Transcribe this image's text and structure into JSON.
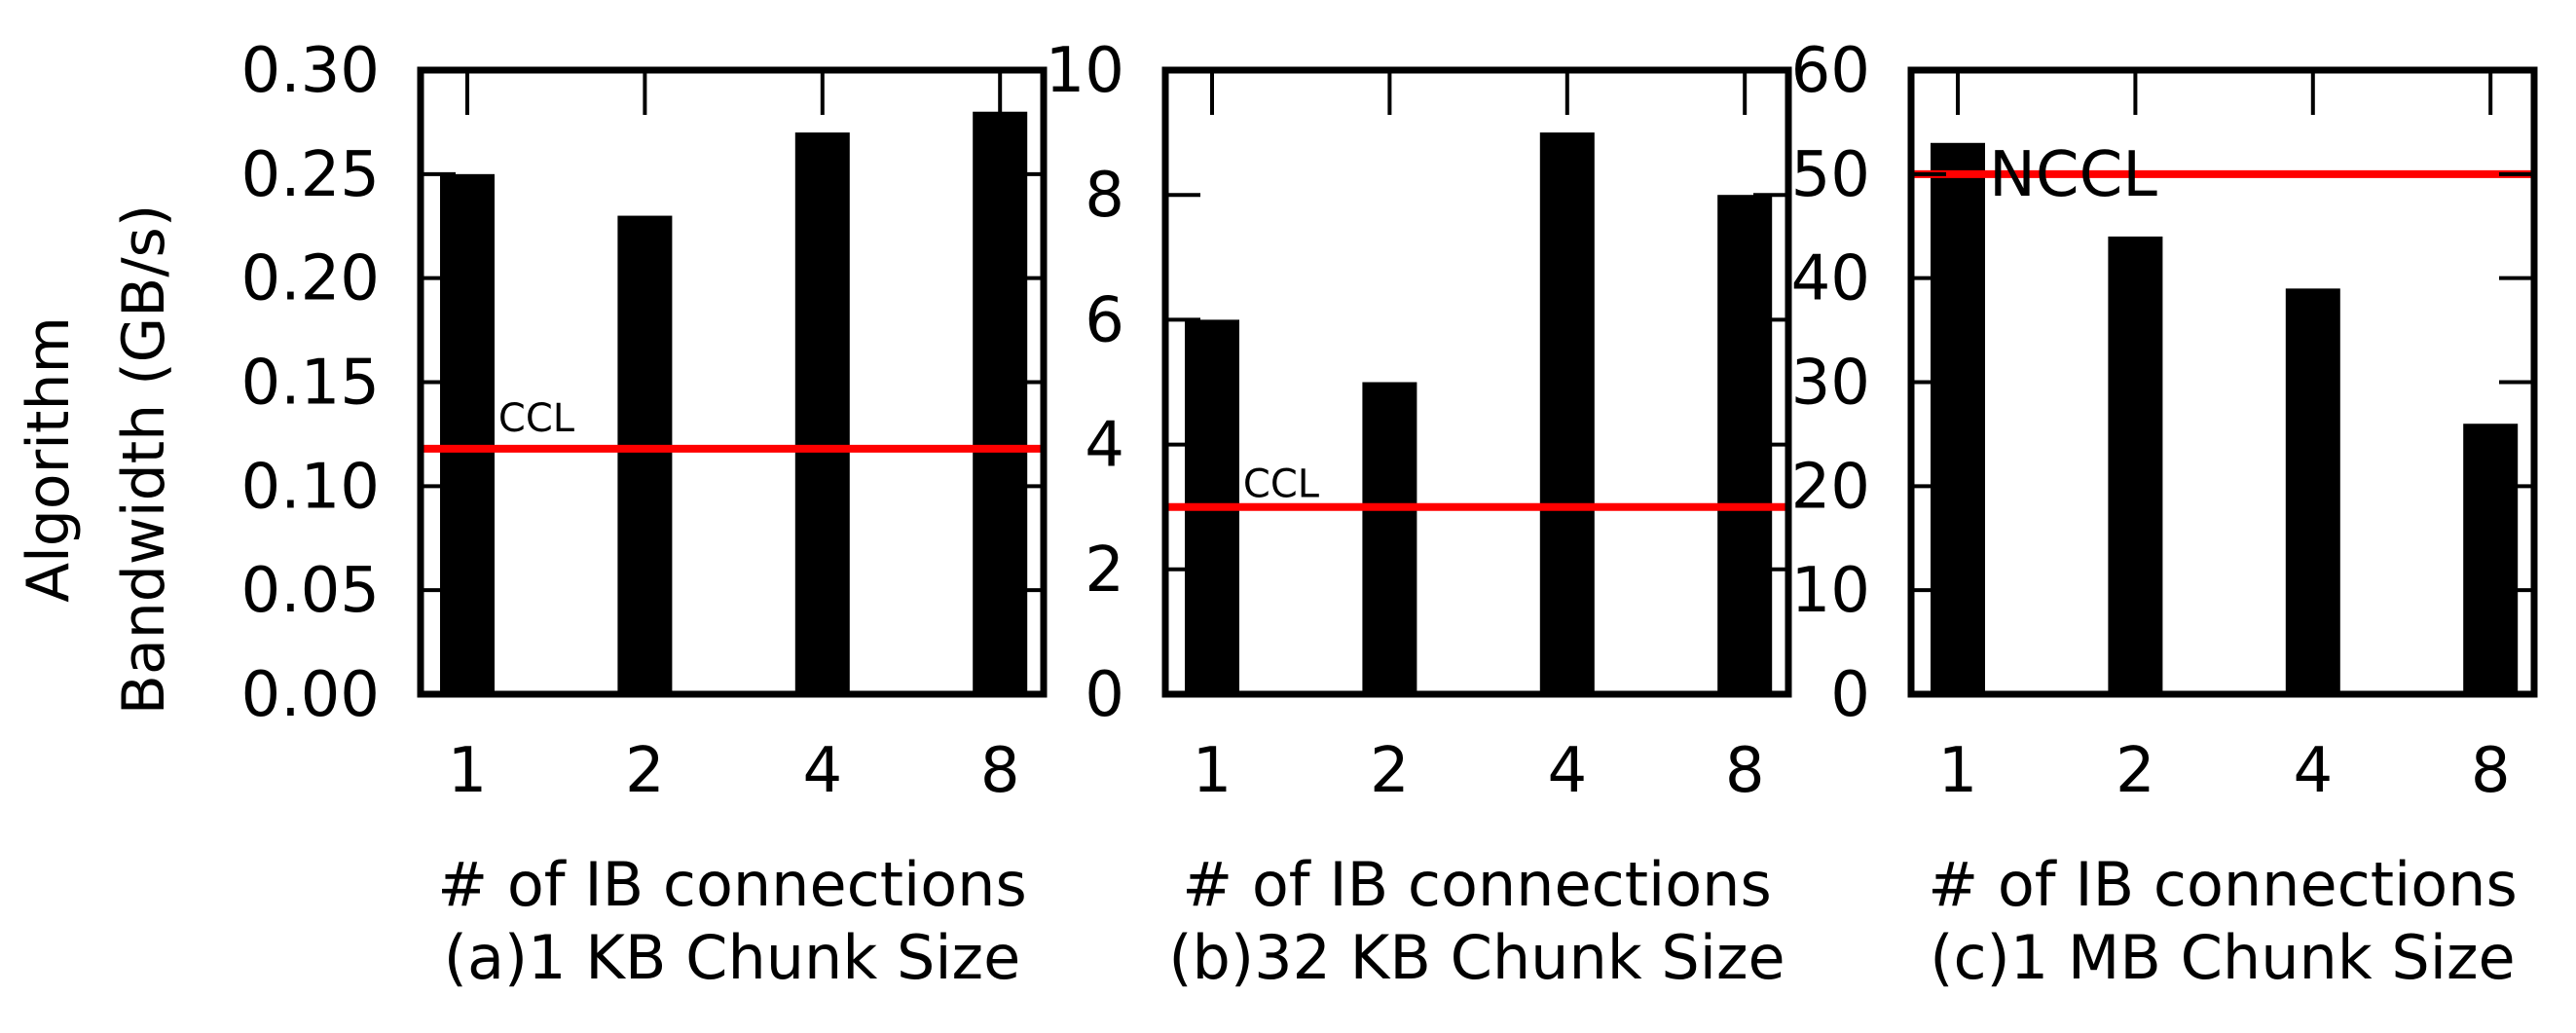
{
  "y_axis_label_line1": "Algorithm",
  "y_axis_label_line2": "Bandwidth (GB/s)",
  "chart_data": [
    {
      "type": "bar",
      "caption": "(a)1 KB Chunk Size",
      "xlabel": "# of IB connections",
      "categories": [
        "1",
        "2",
        "4",
        "8"
      ],
      "values": [
        0.25,
        0.23,
        0.27,
        0.28
      ],
      "ylim": [
        0,
        0.3
      ],
      "yticks": [
        "0.00",
        "0.05",
        "0.10",
        "0.15",
        "0.20",
        "0.25",
        "0.30"
      ],
      "reference": {
        "label": "NCCL",
        "value": 0.118,
        "color": "#ff0000"
      },
      "bar_color": "#000000"
    },
    {
      "type": "bar",
      "caption": "(b)32 KB Chunk Size",
      "xlabel": "# of IB connections",
      "categories": [
        "1",
        "2",
        "4",
        "8"
      ],
      "values": [
        6.0,
        5.0,
        9.0,
        8.0
      ],
      "ylim": [
        0,
        10
      ],
      "yticks": [
        "0",
        "2",
        "4",
        "6",
        "8",
        "10"
      ],
      "reference": {
        "label": "NCCL",
        "value": 3.0,
        "color": "#ff0000"
      },
      "bar_color": "#000000"
    },
    {
      "type": "bar",
      "caption": "(c)1 MB Chunk Size",
      "xlabel": "# of IB connections",
      "categories": [
        "1",
        "2",
        "4",
        "8"
      ],
      "values": [
        53,
        44,
        39,
        26
      ],
      "ylim": [
        0,
        60
      ],
      "yticks": [
        "0",
        "10",
        "20",
        "30",
        "40",
        "50",
        "60"
      ],
      "reference": {
        "label": "NCCL",
        "value": 50,
        "color": "#ff0000"
      },
      "bar_color": "#000000"
    }
  ]
}
